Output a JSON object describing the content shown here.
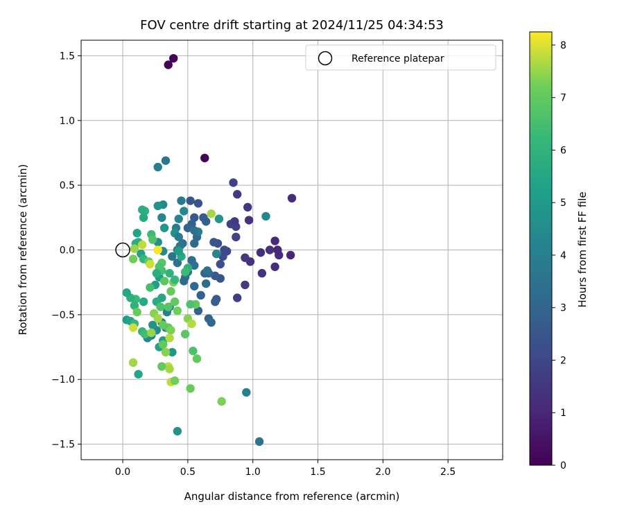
{
  "chart_data": {
    "type": "scatter",
    "title": "FOV centre drift starting at 2024/11/25 04:34:53",
    "xlabel": "Angular distance from reference (arcmin)",
    "ylabel": "Rotation from reference (arcmin)",
    "xlim": [
      -0.32,
      2.92
    ],
    "ylim": [
      -1.62,
      1.62
    ],
    "xticks": [
      0.0,
      0.5,
      1.0,
      1.5,
      2.0,
      2.5
    ],
    "xtick_labels": [
      "0.0",
      "0.5",
      "1.0",
      "1.5",
      "2.0",
      "2.5"
    ],
    "yticks": [
      -1.5,
      -1.0,
      -0.5,
      0.0,
      0.5,
      1.0,
      1.5
    ],
    "ytick_labels": [
      "−1.5",
      "−1.0",
      "−0.5",
      "0.0",
      "0.5",
      "1.0",
      "1.5"
    ],
    "grid": true,
    "legend": {
      "position": "top-right",
      "entries": [
        "Reference platepar"
      ]
    },
    "reference": {
      "x": 0.0,
      "y": 0.0,
      "marker": "open-circle"
    },
    "colorbar": {
      "label": "Hours from first FF file",
      "colormap": "viridis",
      "range": [
        0,
        8.25
      ],
      "ticks": [
        0,
        1,
        2,
        3,
        4,
        5,
        6,
        7,
        8
      ],
      "tick_labels": [
        "0",
        "1",
        "2",
        "3",
        "4",
        "5",
        "6",
        "7",
        "8"
      ]
    },
    "points": [
      {
        "x": 0.35,
        "y": 1.43,
        "h": 0.1
      },
      {
        "x": 0.39,
        "y": 1.48,
        "h": 0.1
      },
      {
        "x": 0.63,
        "y": 0.71,
        "h": 0.1
      },
      {
        "x": 1.3,
        "y": 0.4,
        "h": 1.2
      },
      {
        "x": 1.29,
        "y": -0.04,
        "h": 1.0
      },
      {
        "x": 1.2,
        "y": -0.04,
        "h": 1.1
      },
      {
        "x": 1.19,
        "y": 0.0,
        "h": 1.0
      },
      {
        "x": 1.17,
        "y": 0.07,
        "h": 1.1
      },
      {
        "x": 1.17,
        "y": -0.13,
        "h": 1.2
      },
      {
        "x": 1.13,
        "y": 0.0,
        "h": 1.3
      },
      {
        "x": 1.06,
        "y": -0.02,
        "h": 1.2
      },
      {
        "x": 1.07,
        "y": -0.18,
        "h": 1.4
      },
      {
        "x": 0.98,
        "y": -0.09,
        "h": 1.3
      },
      {
        "x": 0.94,
        "y": -0.06,
        "h": 1.5
      },
      {
        "x": 0.94,
        "y": -0.27,
        "h": 1.6
      },
      {
        "x": 0.96,
        "y": 0.33,
        "h": 1.5
      },
      {
        "x": 0.97,
        "y": 0.23,
        "h": 1.3
      },
      {
        "x": 0.85,
        "y": 0.52,
        "h": 1.8
      },
      {
        "x": 0.88,
        "y": 0.43,
        "h": 1.6
      },
      {
        "x": 0.87,
        "y": 0.18,
        "h": 1.8
      },
      {
        "x": 0.83,
        "y": 0.2,
        "h": 1.9
      },
      {
        "x": 0.86,
        "y": 0.22,
        "h": 1.7
      },
      {
        "x": 0.87,
        "y": 0.1,
        "h": 1.8
      },
      {
        "x": 0.88,
        "y": -0.37,
        "h": 1.7
      },
      {
        "x": 0.8,
        "y": -0.01,
        "h": 2.0
      },
      {
        "x": 0.78,
        "y": 0.0,
        "h": 2.1
      },
      {
        "x": 0.77,
        "y": -0.05,
        "h": 2.2
      },
      {
        "x": 0.75,
        "y": -0.11,
        "h": 2.3
      },
      {
        "x": 0.75,
        "y": -0.22,
        "h": 2.4
      },
      {
        "x": 0.73,
        "y": 0.05,
        "h": 2.3
      },
      {
        "x": 0.7,
        "y": 0.06,
        "h": 2.5
      },
      {
        "x": 0.71,
        "y": -0.2,
        "h": 2.6
      },
      {
        "x": 0.72,
        "y": -0.38,
        "h": 2.7
      },
      {
        "x": 0.71,
        "y": -0.4,
        "h": 2.8
      },
      {
        "x": 0.66,
        "y": -0.53,
        "h": 3.0
      },
      {
        "x": 0.68,
        "y": -0.56,
        "h": 3.1
      },
      {
        "x": 0.66,
        "y": -0.18,
        "h": 3.2
      },
      {
        "x": 0.64,
        "y": -0.26,
        "h": 3.3
      },
      {
        "x": 0.63,
        "y": -0.18,
        "h": 3.0
      },
      {
        "x": 0.64,
        "y": 0.22,
        "h": 2.8
      },
      {
        "x": 0.62,
        "y": 0.25,
        "h": 2.7
      },
      {
        "x": 0.58,
        "y": 0.36,
        "h": 2.4
      },
      {
        "x": 0.52,
        "y": 0.38,
        "h": 2.5
      },
      {
        "x": 0.55,
        "y": 0.25,
        "h": 2.6
      },
      {
        "x": 0.53,
        "y": 0.2,
        "h": 2.9
      },
      {
        "x": 0.5,
        "y": 0.17,
        "h": 3.0
      },
      {
        "x": 0.57,
        "y": 0.1,
        "h": 3.1
      },
      {
        "x": 0.55,
        "y": 0.05,
        "h": 3.2
      },
      {
        "x": 0.53,
        "y": -0.08,
        "h": 3.3
      },
      {
        "x": 0.55,
        "y": -0.12,
        "h": 3.4
      },
      {
        "x": 0.5,
        "y": -0.17,
        "h": 3.5
      },
      {
        "x": 0.48,
        "y": -0.21,
        "h": 3.6
      },
      {
        "x": 0.47,
        "y": -0.24,
        "h": 3.2
      },
      {
        "x": 0.55,
        "y": -0.28,
        "h": 3.1
      },
      {
        "x": 0.58,
        "y": -0.47,
        "h": 2.9
      },
      {
        "x": 0.46,
        "y": 0.05,
        "h": 3.3
      },
      {
        "x": 0.44,
        "y": 0.03,
        "h": 3.7
      },
      {
        "x": 0.42,
        "y": -0.1,
        "h": 3.4
      },
      {
        "x": 0.45,
        "y": 0.38,
        "h": 3.8
      },
      {
        "x": 0.47,
        "y": 0.3,
        "h": 4.4
      },
      {
        "x": 0.43,
        "y": 0.24,
        "h": 4.2
      },
      {
        "x": 0.41,
        "y": 0.17,
        "h": 4.0
      },
      {
        "x": 0.4,
        "y": 0.13,
        "h": 4.6
      },
      {
        "x": 0.43,
        "y": 0.1,
        "h": 3.9
      },
      {
        "x": 0.42,
        "y": 0.0,
        "h": 4.1
      },
      {
        "x": 0.38,
        "y": -0.05,
        "h": 3.6
      },
      {
        "x": 0.36,
        "y": -0.44,
        "h": 3.8
      },
      {
        "x": 0.34,
        "y": -0.48,
        "h": 4.1
      },
      {
        "x": 0.3,
        "y": -0.56,
        "h": 4.0
      },
      {
        "x": 0.33,
        "y": -0.6,
        "h": 4.2
      },
      {
        "x": 0.26,
        "y": -0.62,
        "h": 4.5
      },
      {
        "x": 0.22,
        "y": -0.66,
        "h": 4.0
      },
      {
        "x": 0.19,
        "y": -0.68,
        "h": 4.3
      },
      {
        "x": 0.23,
        "y": -0.58,
        "h": 4.7
      },
      {
        "x": 0.31,
        "y": -0.7,
        "h": 5.0
      },
      {
        "x": 0.28,
        "y": -0.75,
        "h": 5.3
      },
      {
        "x": 0.38,
        "y": -0.79,
        "h": 4.9
      },
      {
        "x": 0.33,
        "y": 0.69,
        "h": 3.6
      },
      {
        "x": 0.27,
        "y": 0.64,
        "h": 4.0
      },
      {
        "x": 0.31,
        "y": 0.35,
        "h": 4.4
      },
      {
        "x": 0.27,
        "y": 0.34,
        "h": 4.8
      },
      {
        "x": 0.3,
        "y": 0.25,
        "h": 4.3
      },
      {
        "x": 0.32,
        "y": 0.17,
        "h": 4.9
      },
      {
        "x": 0.27,
        "y": 0.06,
        "h": 4.6
      },
      {
        "x": 0.31,
        "y": -0.01,
        "h": 4.4
      },
      {
        "x": 0.28,
        "y": -0.21,
        "h": 5.0
      },
      {
        "x": 0.25,
        "y": -0.27,
        "h": 5.2
      },
      {
        "x": 0.3,
        "y": -0.37,
        "h": 5.5
      },
      {
        "x": 0.26,
        "y": -0.4,
        "h": 5.7
      },
      {
        "x": 0.58,
        "y": 0.14,
        "h": 3.9
      },
      {
        "x": 0.74,
        "y": 0.24,
        "h": 4.9
      },
      {
        "x": 1.1,
        "y": 0.26,
        "h": 4.4
      },
      {
        "x": 0.95,
        "y": -1.1,
        "h": 4.0
      },
      {
        "x": 1.05,
        "y": -1.48,
        "h": 3.5
      },
      {
        "x": 0.42,
        "y": -1.4,
        "h": 4.7
      },
      {
        "x": 0.72,
        "y": -0.03,
        "h": 4.2
      },
      {
        "x": 0.65,
        "y": -0.16,
        "h": 3.4
      },
      {
        "x": 0.6,
        "y": -0.35,
        "h": 2.9
      },
      {
        "x": 0.55,
        "y": 0.15,
        "h": 3.5
      },
      {
        "x": 0.17,
        "y": 0.3,
        "h": 6.0
      },
      {
        "x": 0.15,
        "y": 0.31,
        "h": 5.8
      },
      {
        "x": 0.16,
        "y": 0.25,
        "h": 5.6
      },
      {
        "x": 0.11,
        "y": 0.13,
        "h": 5.4
      },
      {
        "x": 0.12,
        "y": 0.06,
        "h": 5.9
      },
      {
        "x": 0.1,
        "y": 0.05,
        "h": 5.7
      },
      {
        "x": 0.14,
        "y": -0.03,
        "h": 5.3
      },
      {
        "x": 0.16,
        "y": -0.07,
        "h": 6.1
      },
      {
        "x": 0.1,
        "y": -0.38,
        "h": 6.3
      },
      {
        "x": 0.06,
        "y": -0.37,
        "h": 5.8
      },
      {
        "x": 0.03,
        "y": -0.33,
        "h": 5.5
      },
      {
        "x": 0.09,
        "y": -0.43,
        "h": 6.0
      },
      {
        "x": 0.16,
        "y": -0.4,
        "h": 5.6
      },
      {
        "x": 0.03,
        "y": -0.54,
        "h": 5.2
      },
      {
        "x": 0.06,
        "y": -0.55,
        "h": 5.4
      },
      {
        "x": 0.09,
        "y": -0.57,
        "h": 6.2
      },
      {
        "x": 0.15,
        "y": -0.63,
        "h": 6.1
      },
      {
        "x": 0.17,
        "y": -0.65,
        "h": 6.4
      },
      {
        "x": 0.12,
        "y": -0.96,
        "h": 5.5
      },
      {
        "x": 0.21,
        "y": -0.29,
        "h": 6.5
      },
      {
        "x": 0.22,
        "y": 0.12,
        "h": 6.3
      },
      {
        "x": 0.23,
        "y": 0.08,
        "h": 6.7
      },
      {
        "x": 0.2,
        "y": -0.09,
        "h": 7.0
      },
      {
        "x": 0.21,
        "y": -0.11,
        "h": 7.9
      },
      {
        "x": 0.27,
        "y": 0.0,
        "h": 8.2
      },
      {
        "x": 0.09,
        "y": 0.01,
        "h": 7.5
      },
      {
        "x": 0.08,
        "y": -0.07,
        "h": 7.2
      },
      {
        "x": 0.15,
        "y": 0.04,
        "h": 7.8
      },
      {
        "x": 0.3,
        "y": -0.1,
        "h": 6.8
      },
      {
        "x": 0.3,
        "y": -0.16,
        "h": 6.5
      },
      {
        "x": 0.28,
        "y": -0.13,
        "h": 6.6
      },
      {
        "x": 0.32,
        "y": -0.24,
        "h": 6.9
      },
      {
        "x": 0.37,
        "y": -0.32,
        "h": 7.1
      },
      {
        "x": 0.39,
        "y": -0.25,
        "h": 7.3
      },
      {
        "x": 0.35,
        "y": -0.44,
        "h": 6.8
      },
      {
        "x": 0.4,
        "y": -0.4,
        "h": 7.0
      },
      {
        "x": 0.42,
        "y": -0.47,
        "h": 7.2
      },
      {
        "x": 0.29,
        "y": -0.44,
        "h": 6.7
      },
      {
        "x": 0.24,
        "y": -0.49,
        "h": 7.4
      },
      {
        "x": 0.27,
        "y": -0.53,
        "h": 7.6
      },
      {
        "x": 0.31,
        "y": -0.58,
        "h": 7.1
      },
      {
        "x": 0.35,
        "y": -0.6,
        "h": 6.9
      },
      {
        "x": 0.37,
        "y": -0.62,
        "h": 7.3
      },
      {
        "x": 0.22,
        "y": -0.64,
        "h": 7.5
      },
      {
        "x": 0.36,
        "y": -0.68,
        "h": 7.7
      },
      {
        "x": 0.31,
        "y": -0.73,
        "h": 7.0
      },
      {
        "x": 0.33,
        "y": -0.79,
        "h": 7.4
      },
      {
        "x": 0.35,
        "y": -0.9,
        "h": 7.8
      },
      {
        "x": 0.3,
        "y": -0.9,
        "h": 7.0
      },
      {
        "x": 0.36,
        "y": -0.92,
        "h": 7.6
      },
      {
        "x": 0.37,
        "y": -1.02,
        "h": 7.8
      },
      {
        "x": 0.4,
        "y": -1.01,
        "h": 7.2
      },
      {
        "x": 0.08,
        "y": -0.87,
        "h": 7.6
      },
      {
        "x": 0.08,
        "y": -0.6,
        "h": 7.9
      },
      {
        "x": 0.11,
        "y": -0.48,
        "h": 7.1
      },
      {
        "x": 0.5,
        "y": -0.53,
        "h": 7.4
      },
      {
        "x": 0.53,
        "y": -0.57,
        "h": 7.7
      },
      {
        "x": 0.56,
        "y": -0.42,
        "h": 7.0
      },
      {
        "x": 0.52,
        "y": -0.42,
        "h": 6.6
      },
      {
        "x": 0.48,
        "y": -0.65,
        "h": 6.9
      },
      {
        "x": 0.54,
        "y": -0.78,
        "h": 6.6
      },
      {
        "x": 0.57,
        "y": -0.84,
        "h": 7.0
      },
      {
        "x": 0.52,
        "y": -1.07,
        "h": 7.1
      },
      {
        "x": 0.76,
        "y": -1.17,
        "h": 7.3
      },
      {
        "x": 0.68,
        "y": 0.28,
        "h": 7.6
      },
      {
        "x": 0.45,
        "y": -0.05,
        "h": 5.6
      },
      {
        "x": 0.43,
        "y": -0.01,
        "h": 5.2
      },
      {
        "x": 0.5,
        "y": -0.14,
        "h": 5.9
      },
      {
        "x": 0.48,
        "y": -0.17,
        "h": 6.3
      },
      {
        "x": 0.36,
        "y": -0.18,
        "h": 6.0
      },
      {
        "x": 0.26,
        "y": -0.18,
        "h": 5.8
      },
      {
        "x": 0.4,
        "y": -0.23,
        "h": 6.2
      }
    ]
  }
}
